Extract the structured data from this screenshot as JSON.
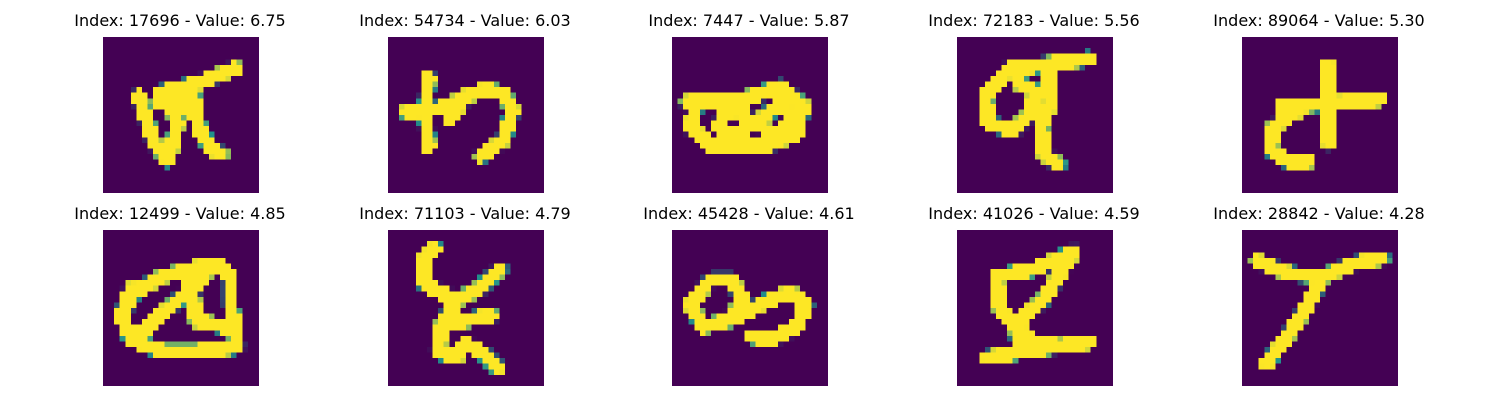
{
  "background_color": "#440154",
  "stroke_color": "#fde725",
  "edge_color": "#21918c",
  "panels": [
    {
      "title": "Index: 17696 - Value: 6.75",
      "glyph_strokes": [
        [
          [
            0.23,
            0.38
          ],
          [
            0.33,
            0.68
          ],
          [
            0.42,
            0.79
          ],
          [
            0.48,
            0.55
          ],
          [
            0.42,
            0.43
          ],
          [
            0.35,
            0.42
          ]
        ],
        [
          [
            0.36,
            0.36
          ],
          [
            0.6,
            0.3
          ],
          [
            0.85,
            0.2
          ]
        ],
        [
          [
            0.56,
            0.3
          ],
          [
            0.62,
            0.6
          ],
          [
            0.7,
            0.72
          ],
          [
            0.76,
            0.75
          ]
        ],
        [
          [
            0.5,
            0.4
          ],
          [
            0.58,
            0.5
          ]
        ]
      ]
    },
    {
      "title": "Index: 54734 - Value: 6.03",
      "glyph_strokes": [
        [
          [
            0.12,
            0.48
          ],
          [
            0.33,
            0.46
          ],
          [
            0.47,
            0.4
          ]
        ],
        [
          [
            0.26,
            0.26
          ],
          [
            0.24,
            0.48
          ],
          [
            0.26,
            0.7
          ]
        ],
        [
          [
            0.4,
            0.52
          ],
          [
            0.5,
            0.38
          ],
          [
            0.62,
            0.34
          ],
          [
            0.74,
            0.36
          ],
          [
            0.8,
            0.47
          ],
          [
            0.74,
            0.66
          ],
          [
            0.6,
            0.76
          ]
        ]
      ]
    },
    {
      "title": "Index: 7447 - Value: 5.87",
      "glyph_strokes": [
        [
          [
            0.1,
            0.42
          ],
          [
            0.45,
            0.4
          ],
          [
            0.7,
            0.32
          ],
          [
            0.84,
            0.44
          ],
          [
            0.8,
            0.62
          ],
          [
            0.6,
            0.7
          ],
          [
            0.25,
            0.7
          ],
          [
            0.12,
            0.58
          ],
          [
            0.16,
            0.42
          ]
        ],
        [
          [
            0.32,
            0.52
          ],
          [
            0.44,
            0.45
          ],
          [
            0.5,
            0.56
          ],
          [
            0.4,
            0.64
          ],
          [
            0.3,
            0.58
          ]
        ],
        [
          [
            0.58,
            0.52
          ],
          [
            0.7,
            0.42
          ],
          [
            0.78,
            0.55
          ],
          [
            0.64,
            0.64
          ],
          [
            0.56,
            0.55
          ]
        ]
      ]
    },
    {
      "title": "Index: 72183 - Value: 5.56",
      "glyph_strokes": [
        [
          [
            0.38,
            0.2
          ],
          [
            0.84,
            0.14
          ]
        ],
        [
          [
            0.34,
            0.2
          ],
          [
            0.18,
            0.38
          ],
          [
            0.2,
            0.55
          ],
          [
            0.36,
            0.6
          ],
          [
            0.48,
            0.48
          ],
          [
            0.5,
            0.35
          ],
          [
            0.4,
            0.3
          ]
        ],
        [
          [
            0.58,
            0.2
          ],
          [
            0.6,
            0.42
          ],
          [
            0.54,
            0.58
          ],
          [
            0.56,
            0.75
          ],
          [
            0.65,
            0.82
          ]
        ]
      ]
    },
    {
      "title": "Index: 89064 - Value: 5.30",
      "glyph_strokes": [
        [
          [
            0.55,
            0.18
          ],
          [
            0.56,
            0.68
          ]
        ],
        [
          [
            0.25,
            0.45
          ],
          [
            0.88,
            0.4
          ]
        ],
        [
          [
            0.35,
            0.48
          ],
          [
            0.2,
            0.58
          ],
          [
            0.18,
            0.72
          ],
          [
            0.3,
            0.8
          ],
          [
            0.42,
            0.8
          ]
        ]
      ]
    },
    {
      "title": "Index: 12499 - Value: 4.85",
      "glyph_strokes": [
        [
          [
            0.12,
            0.55
          ],
          [
            0.2,
            0.4
          ],
          [
            0.38,
            0.3
          ],
          [
            0.6,
            0.24
          ],
          [
            0.75,
            0.22
          ],
          [
            0.82,
            0.3
          ],
          [
            0.82,
            0.48
          ],
          [
            0.86,
            0.75
          ]
        ],
        [
          [
            0.18,
            0.38
          ],
          [
            0.12,
            0.55
          ],
          [
            0.18,
            0.7
          ],
          [
            0.38,
            0.78
          ],
          [
            0.6,
            0.78
          ],
          [
            0.86,
            0.75
          ]
        ],
        [
          [
            0.65,
            0.3
          ],
          [
            0.48,
            0.45
          ],
          [
            0.22,
            0.68
          ]
        ],
        [
          [
            0.55,
            0.28
          ],
          [
            0.6,
            0.58
          ],
          [
            0.78,
            0.62
          ]
        ]
      ]
    },
    {
      "title": "Index: 71103 - Value: 4.79",
      "glyph_strokes": [
        [
          [
            0.3,
            0.12
          ],
          [
            0.22,
            0.2
          ],
          [
            0.24,
            0.35
          ],
          [
            0.44,
            0.45
          ],
          [
            0.58,
            0.38
          ],
          [
            0.72,
            0.25
          ]
        ],
        [
          [
            0.44,
            0.45
          ],
          [
            0.35,
            0.6
          ],
          [
            0.5,
            0.58
          ],
          [
            0.66,
            0.55
          ]
        ],
        [
          [
            0.35,
            0.6
          ],
          [
            0.32,
            0.78
          ],
          [
            0.44,
            0.82
          ],
          [
            0.5,
            0.73
          ],
          [
            0.6,
            0.78
          ],
          [
            0.7,
            0.88
          ]
        ]
      ]
    },
    {
      "title": "Index: 45428 - Value: 4.61",
      "glyph_strokes": [
        [
          [
            0.22,
            0.35
          ],
          [
            0.12,
            0.48
          ],
          [
            0.2,
            0.62
          ],
          [
            0.36,
            0.58
          ],
          [
            0.46,
            0.45
          ],
          [
            0.38,
            0.32
          ],
          [
            0.26,
            0.32
          ]
        ],
        [
          [
            0.42,
            0.56
          ],
          [
            0.6,
            0.46
          ],
          [
            0.76,
            0.4
          ],
          [
            0.86,
            0.48
          ],
          [
            0.8,
            0.62
          ],
          [
            0.64,
            0.7
          ],
          [
            0.5,
            0.68
          ]
        ]
      ]
    },
    {
      "title": "Index: 41026 - Value: 4.59",
      "glyph_strokes": [
        [
          [
            0.25,
            0.3
          ],
          [
            0.5,
            0.25
          ],
          [
            0.75,
            0.14
          ]
        ],
        [
          [
            0.75,
            0.14
          ],
          [
            0.55,
            0.45
          ],
          [
            0.38,
            0.6
          ],
          [
            0.4,
            0.78
          ]
        ],
        [
          [
            0.25,
            0.3
          ],
          [
            0.28,
            0.52
          ],
          [
            0.48,
            0.72
          ],
          [
            0.7,
            0.75
          ],
          [
            0.84,
            0.72
          ]
        ],
        [
          [
            0.2,
            0.82
          ],
          [
            0.55,
            0.76
          ],
          [
            0.84,
            0.72
          ]
        ]
      ]
    },
    {
      "title": "Index: 28842 - Value: 4.28",
      "glyph_strokes": [
        [
          [
            0.1,
            0.2
          ],
          [
            0.3,
            0.28
          ],
          [
            0.52,
            0.3
          ]
        ],
        [
          [
            0.52,
            0.3
          ],
          [
            0.7,
            0.22
          ],
          [
            0.9,
            0.18
          ]
        ],
        [
          [
            0.52,
            0.3
          ],
          [
            0.4,
            0.52
          ],
          [
            0.28,
            0.7
          ],
          [
            0.16,
            0.85
          ]
        ]
      ]
    }
  ]
}
